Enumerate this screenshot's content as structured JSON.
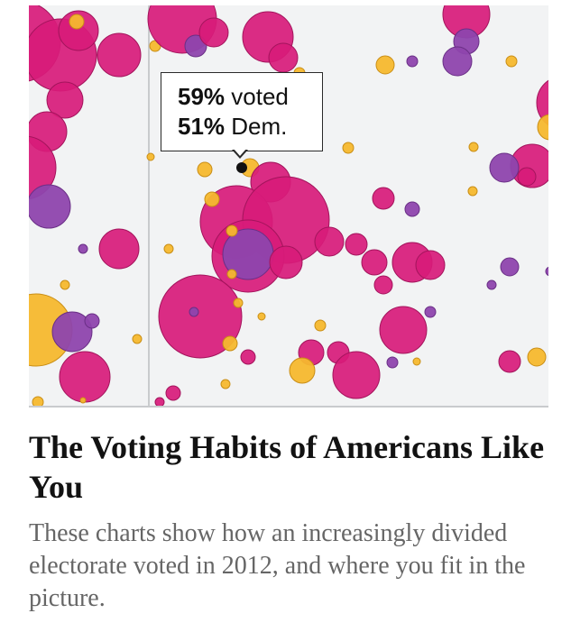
{
  "article": {
    "headline": "The Voting Habits of Americans Like You",
    "summary": "These charts show how an increasingly divided electorate voted in 2012, and where you fit in the picture."
  },
  "tooltip": {
    "voted_value": "59%",
    "voted_label": " voted",
    "dem_value": "51%",
    "dem_label": " Dem."
  },
  "colors": {
    "dem": "#d81b7a",
    "rep": "#8e44ad",
    "other": "#f5b82e",
    "background": "#f2f3f4"
  }
}
